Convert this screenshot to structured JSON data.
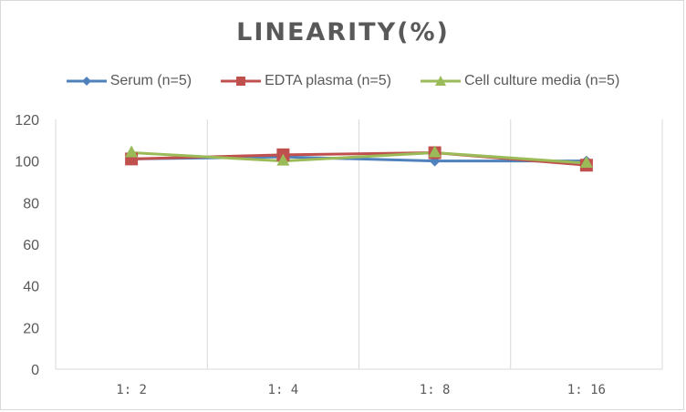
{
  "chart_data": {
    "type": "line",
    "title": "LINEARITY(%)",
    "xlabel": "",
    "ylabel": "",
    "categories": [
      "1:2",
      "1:4",
      "1:8",
      "1:16"
    ],
    "ylim": [
      0,
      120
    ],
    "yticks": [
      "0",
      "20",
      "40",
      "60",
      "80",
      "100",
      "120"
    ],
    "grid": "vertical",
    "legend_position": "top",
    "series": [
      {
        "name": "Serum (n=5)",
        "color": "#4f81bd",
        "marker": "diamond",
        "values": [
          101,
          102,
          100,
          100
        ]
      },
      {
        "name": "EDTA plasma (n=5)",
        "color": "#c0504d",
        "marker": "square",
        "values": [
          101,
          103,
          104,
          98
        ]
      },
      {
        "name": "Cell culture media (n=5)",
        "color": "#9bbb59",
        "marker": "triangle",
        "values": [
          104,
          100,
          104,
          99
        ]
      }
    ]
  }
}
